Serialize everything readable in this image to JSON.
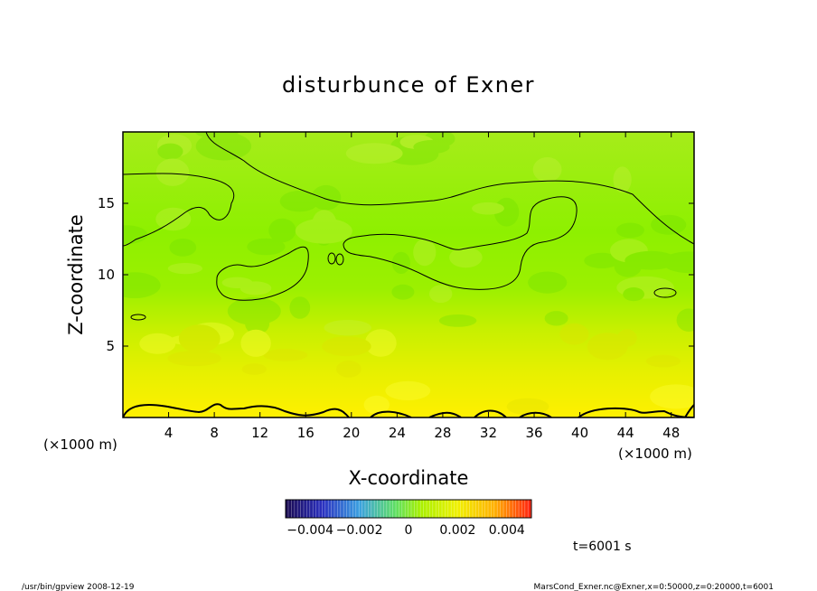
{
  "chart_data": {
    "type": "heatmap",
    "title": "disturbunce of Exner",
    "xlabel": "X-coordinate",
    "ylabel": "Z-coordinate",
    "x_unit": "(×1000 m)",
    "y_unit": "(×1000 m)",
    "xlim": [
      0,
      50
    ],
    "ylim": [
      0,
      20
    ],
    "x_ticks": [
      4,
      8,
      12,
      16,
      20,
      24,
      28,
      32,
      36,
      40,
      44,
      48
    ],
    "y_ticks": [
      5,
      10,
      15
    ],
    "colorbar": {
      "range": [
        -0.005,
        0.005
      ],
      "tick_values": [
        -0.004,
        -0.002,
        0,
        0.002,
        0.004
      ],
      "tick_labels": [
        "−0.004",
        "−0.002",
        "0",
        "0.002",
        "0.004"
      ]
    },
    "field_estimate": {
      "description": "mostly near-zero positive disturbance; strongest (~0.003) near surface, ~0.0015 aloft",
      "surface_value": 0.003,
      "upper_value": 0.0015
    },
    "grid": false,
    "colormap": "rainbow",
    "colors": {
      "low": "#101060",
      "mid": "#7ff000",
      "high": "#ff3010"
    },
    "time_label": "t=6001 s",
    "footer_left": "/usr/bin/gpview   2008-12-19",
    "footer_right": "MarsCond_Exner.nc@Exner,x=0:50000,z=0:20000,t=6001"
  }
}
